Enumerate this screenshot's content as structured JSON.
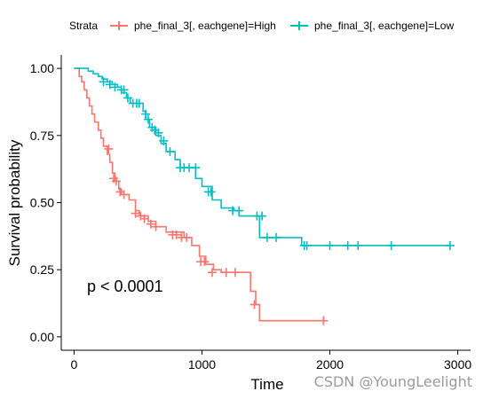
{
  "chart_data": {
    "type": "line",
    "xlabel": "Time",
    "ylabel": "Survival probability",
    "xlim": [
      -100,
      3100
    ],
    "ylim": [
      -0.05,
      1.05
    ],
    "xticks": [
      0,
      1000,
      2000,
      3000
    ],
    "yticks": [
      0.0,
      0.25,
      0.5,
      0.75,
      1.0
    ],
    "ytick_labels": [
      "0.00",
      "0.25",
      "0.50",
      "0.75",
      "1.00"
    ],
    "grid": false,
    "legend_position": "top",
    "legend_title": "Strata",
    "annotation": "p < 0.0001",
    "series": [
      {
        "name": "phe_final_3[, eachgene]=High",
        "color": "#F8766D",
        "steps": [
          [
            0,
            1.0
          ],
          [
            40,
            0.97
          ],
          [
            60,
            0.95
          ],
          [
            80,
            0.92
          ],
          [
            100,
            0.89
          ],
          [
            120,
            0.86
          ],
          [
            140,
            0.83
          ],
          [
            160,
            0.8
          ],
          [
            190,
            0.77
          ],
          [
            210,
            0.74
          ],
          [
            230,
            0.71
          ],
          [
            260,
            0.68
          ],
          [
            280,
            0.65
          ],
          [
            300,
            0.61
          ],
          [
            320,
            0.58
          ],
          [
            350,
            0.55
          ],
          [
            370,
            0.53
          ],
          [
            430,
            0.51
          ],
          [
            480,
            0.47
          ],
          [
            510,
            0.45
          ],
          [
            580,
            0.43
          ],
          [
            640,
            0.41
          ],
          [
            720,
            0.39
          ],
          [
            860,
            0.37
          ],
          [
            920,
            0.34
          ],
          [
            980,
            0.3
          ],
          [
            1030,
            0.27
          ],
          [
            1090,
            0.25
          ],
          [
            1150,
            0.24
          ],
          [
            1380,
            0.17
          ],
          [
            1420,
            0.12
          ],
          [
            1450,
            0.06
          ],
          [
            1960,
            0.06
          ]
        ],
        "censor": [
          [
            270,
            0.7
          ],
          [
            310,
            0.59
          ],
          [
            330,
            0.58
          ],
          [
            360,
            0.54
          ],
          [
            390,
            0.53
          ],
          [
            480,
            0.46
          ],
          [
            520,
            0.45
          ],
          [
            550,
            0.44
          ],
          [
            600,
            0.42
          ],
          [
            640,
            0.41
          ],
          [
            770,
            0.38
          ],
          [
            800,
            0.38
          ],
          [
            840,
            0.37
          ],
          [
            880,
            0.37
          ],
          [
            990,
            0.28
          ],
          [
            1020,
            0.28
          ],
          [
            1080,
            0.24
          ],
          [
            1190,
            0.24
          ],
          [
            1260,
            0.24
          ],
          [
            1410,
            0.12
          ],
          [
            1950,
            0.06
          ]
        ]
      },
      {
        "name": "phe_final_3[, eachgene]=Low",
        "color": "#00BFC4",
        "steps": [
          [
            0,
            1.0
          ],
          [
            110,
            0.99
          ],
          [
            150,
            0.98
          ],
          [
            190,
            0.97
          ],
          [
            220,
            0.96
          ],
          [
            260,
            0.95
          ],
          [
            300,
            0.94
          ],
          [
            340,
            0.93
          ],
          [
            370,
            0.91
          ],
          [
            410,
            0.89
          ],
          [
            440,
            0.87
          ],
          [
            540,
            0.84
          ],
          [
            560,
            0.81
          ],
          [
            590,
            0.78
          ],
          [
            640,
            0.75
          ],
          [
            680,
            0.72
          ],
          [
            720,
            0.69
          ],
          [
            790,
            0.66
          ],
          [
            830,
            0.63
          ],
          [
            950,
            0.59
          ],
          [
            1000,
            0.56
          ],
          [
            1080,
            0.51
          ],
          [
            1150,
            0.48
          ],
          [
            1250,
            0.47
          ],
          [
            1290,
            0.45
          ],
          [
            1450,
            0.37
          ],
          [
            1780,
            0.34
          ],
          [
            2940,
            0.34
          ]
        ],
        "censor": [
          [
            230,
            0.95
          ],
          [
            280,
            0.94
          ],
          [
            320,
            0.93
          ],
          [
            370,
            0.92
          ],
          [
            390,
            0.92
          ],
          [
            420,
            0.89
          ],
          [
            460,
            0.87
          ],
          [
            490,
            0.87
          ],
          [
            510,
            0.87
          ],
          [
            560,
            0.83
          ],
          [
            580,
            0.81
          ],
          [
            610,
            0.78
          ],
          [
            630,
            0.77
          ],
          [
            660,
            0.76
          ],
          [
            700,
            0.73
          ],
          [
            750,
            0.69
          ],
          [
            830,
            0.63
          ],
          [
            860,
            0.63
          ],
          [
            900,
            0.63
          ],
          [
            950,
            0.63
          ],
          [
            1050,
            0.54
          ],
          [
            1070,
            0.54
          ],
          [
            1240,
            0.47
          ],
          [
            1290,
            0.47
          ],
          [
            1430,
            0.45
          ],
          [
            1470,
            0.45
          ],
          [
            1510,
            0.37
          ],
          [
            1580,
            0.37
          ],
          [
            1800,
            0.34
          ],
          [
            1820,
            0.34
          ],
          [
            2000,
            0.34
          ],
          [
            2140,
            0.34
          ],
          [
            2220,
            0.34
          ],
          [
            2480,
            0.34
          ],
          [
            2940,
            0.34
          ]
        ]
      }
    ]
  },
  "watermark": "CSDN @YoungLeelight"
}
